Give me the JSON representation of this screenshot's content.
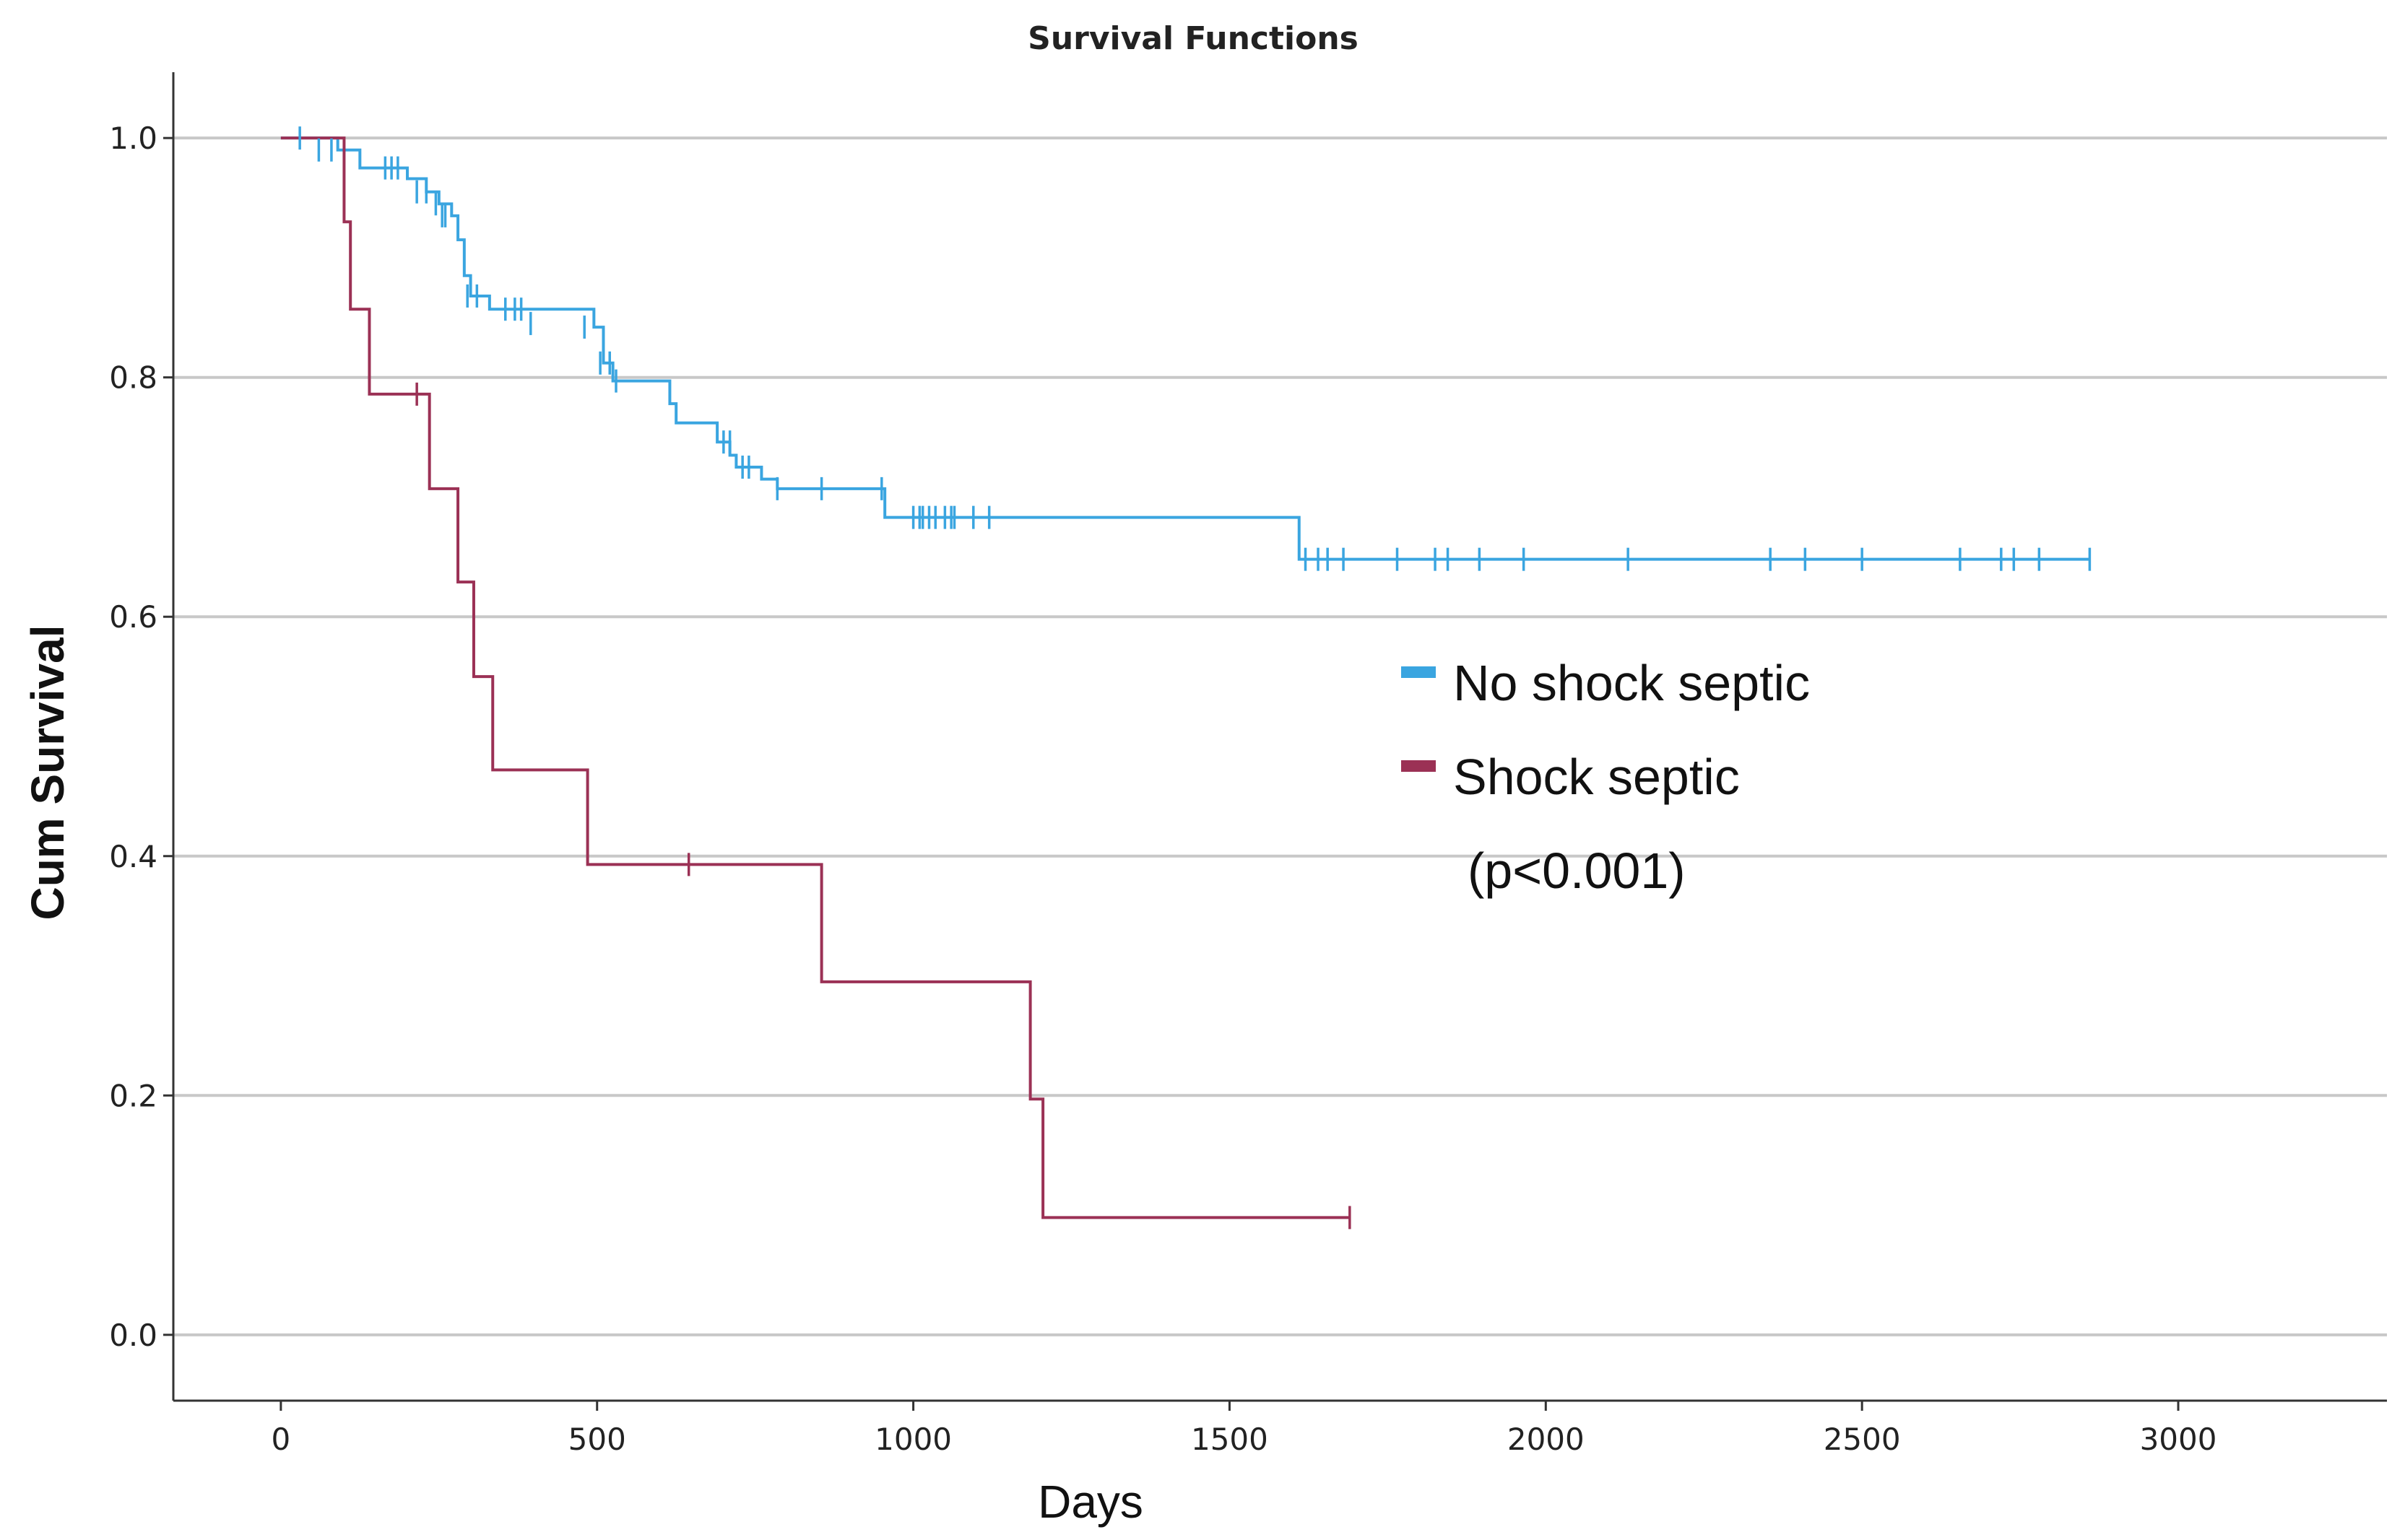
{
  "chart_data": {
    "type": "line",
    "step": true,
    "title": "Survival Functions",
    "xlabel": "Days",
    "ylabel": "Cum Survival",
    "xlim": [
      -170,
      3330
    ],
    "ylim": [
      -0.055,
      1.055
    ],
    "xticks": [
      0,
      500,
      1000,
      1500,
      2000,
      2500,
      3000
    ],
    "yticks": [
      0.0,
      0.2,
      0.4,
      0.6,
      0.8,
      1.0
    ],
    "xtick_labels": [
      "0",
      "500",
      "1000",
      "1500",
      "2000",
      "2500",
      "3000"
    ],
    "ytick_labels": [
      "0.0",
      "0.2",
      "0.4",
      "0.6",
      "0.8",
      "1.0"
    ],
    "grid": "horizontal",
    "legend_position": "center-right",
    "annotation": "(p<0.001)",
    "series": [
      {
        "name": "No shock septic",
        "color": "#3aa5e0",
        "steps": [
          [
            0,
            1.0
          ],
          [
            90,
            0.99
          ],
          [
            125,
            0.975
          ],
          [
            200,
            0.966
          ],
          [
            230,
            0.955
          ],
          [
            250,
            0.945
          ],
          [
            270,
            0.935
          ],
          [
            280,
            0.915
          ],
          [
            290,
            0.885
          ],
          [
            300,
            0.868
          ],
          [
            330,
            0.857
          ],
          [
            495,
            0.842
          ],
          [
            510,
            0.812
          ],
          [
            525,
            0.797
          ],
          [
            615,
            0.778
          ],
          [
            625,
            0.762
          ],
          [
            690,
            0.746
          ],
          [
            710,
            0.735
          ],
          [
            720,
            0.725
          ],
          [
            760,
            0.715
          ],
          [
            785,
            0.707
          ],
          [
            955,
            0.683
          ],
          [
            1610,
            0.648
          ],
          [
            2860,
            0.648
          ]
        ],
        "censored": [
          [
            30,
            1.0
          ],
          [
            60,
            0.99
          ],
          [
            80,
            0.99
          ],
          [
            165,
            0.975
          ],
          [
            175,
            0.975
          ],
          [
            185,
            0.975
          ],
          [
            215,
            0.955
          ],
          [
            230,
            0.955
          ],
          [
            245,
            0.945
          ],
          [
            255,
            0.935
          ],
          [
            260,
            0.935
          ],
          [
            295,
            0.868
          ],
          [
            310,
            0.868
          ],
          [
            355,
            0.857
          ],
          [
            370,
            0.857
          ],
          [
            380,
            0.857
          ],
          [
            395,
            0.845
          ],
          [
            480,
            0.842
          ],
          [
            505,
            0.812
          ],
          [
            520,
            0.812
          ],
          [
            530,
            0.797
          ],
          [
            700,
            0.746
          ],
          [
            710,
            0.746
          ],
          [
            730,
            0.725
          ],
          [
            740,
            0.725
          ],
          [
            785,
            0.707
          ],
          [
            855,
            0.707
          ],
          [
            950,
            0.707
          ],
          [
            1000,
            0.683
          ],
          [
            1010,
            0.683
          ],
          [
            1015,
            0.683
          ],
          [
            1025,
            0.683
          ],
          [
            1035,
            0.683
          ],
          [
            1050,
            0.683
          ],
          [
            1060,
            0.683
          ],
          [
            1065,
            0.683
          ],
          [
            1095,
            0.683
          ],
          [
            1120,
            0.683
          ],
          [
            1620,
            0.648
          ],
          [
            1640,
            0.648
          ],
          [
            1655,
            0.648
          ],
          [
            1680,
            0.648
          ],
          [
            1765,
            0.648
          ],
          [
            1825,
            0.648
          ],
          [
            1845,
            0.648
          ],
          [
            1895,
            0.648
          ],
          [
            1965,
            0.648
          ],
          [
            2130,
            0.648
          ],
          [
            2355,
            0.648
          ],
          [
            2410,
            0.648
          ],
          [
            2500,
            0.648
          ],
          [
            2655,
            0.648
          ],
          [
            2720,
            0.648
          ],
          [
            2740,
            0.648
          ],
          [
            2780,
            0.648
          ],
          [
            2860,
            0.648
          ]
        ]
      },
      {
        "name": "Shock septic",
        "color": "#9b3155",
        "steps": [
          [
            0,
            1.0
          ],
          [
            100,
            0.93
          ],
          [
            110,
            0.857
          ],
          [
            140,
            0.786
          ],
          [
            235,
            0.707
          ],
          [
            280,
            0.629
          ],
          [
            305,
            0.55
          ],
          [
            335,
            0.472
          ],
          [
            485,
            0.393
          ],
          [
            855,
            0.295
          ],
          [
            1185,
            0.197
          ],
          [
            1205,
            0.098
          ],
          [
            1690,
            0.098
          ]
        ],
        "censored": [
          [
            215,
            0.786
          ],
          [
            645,
            0.393
          ],
          [
            1690,
            0.098
          ]
        ]
      }
    ]
  }
}
